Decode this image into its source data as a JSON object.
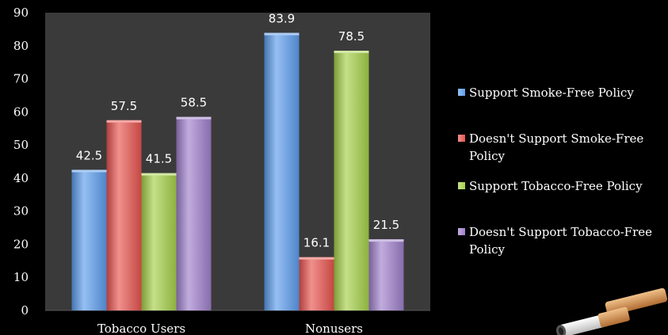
{
  "chart_data": {
    "type": "bar",
    "categories": [
      "Tobacco Users",
      "Nonusers"
    ],
    "series": [
      {
        "name": "Support Smoke-Free Policy",
        "values": [
          42.5,
          83.9
        ],
        "color": "#5d9cec"
      },
      {
        "name": "Doesn't Support Smoke-Free Policy",
        "values": [
          57.5,
          16.1
        ],
        "color": "#e8544f"
      },
      {
        "name": "Support Tobacco-Free Policy",
        "values": [
          41.5,
          78.5
        ],
        "color": "#a6d04a"
      },
      {
        "name": "Doesn't Support Tobacco-Free Policy",
        "values": [
          58.5,
          21.5
        ],
        "color": "#9f80cc"
      }
    ],
    "data_labels": [
      [
        "42.5",
        "83.9"
      ],
      [
        "57.5",
        "16.1"
      ],
      [
        "41.5",
        "78.5"
      ],
      [
        "58.5",
        "21.5"
      ]
    ],
    "ylim": [
      0,
      90
    ],
    "yticks": [
      "0",
      "10",
      "20",
      "30",
      "40",
      "50",
      "60",
      "70",
      "80",
      "90"
    ],
    "legend_position": "right",
    "plot_background": "#3a3a3a",
    "grid": false
  },
  "colors": {
    "background": "#000000",
    "text": "#ffffff"
  },
  "decoration": {
    "image": "cigarette-butt-icon"
  }
}
